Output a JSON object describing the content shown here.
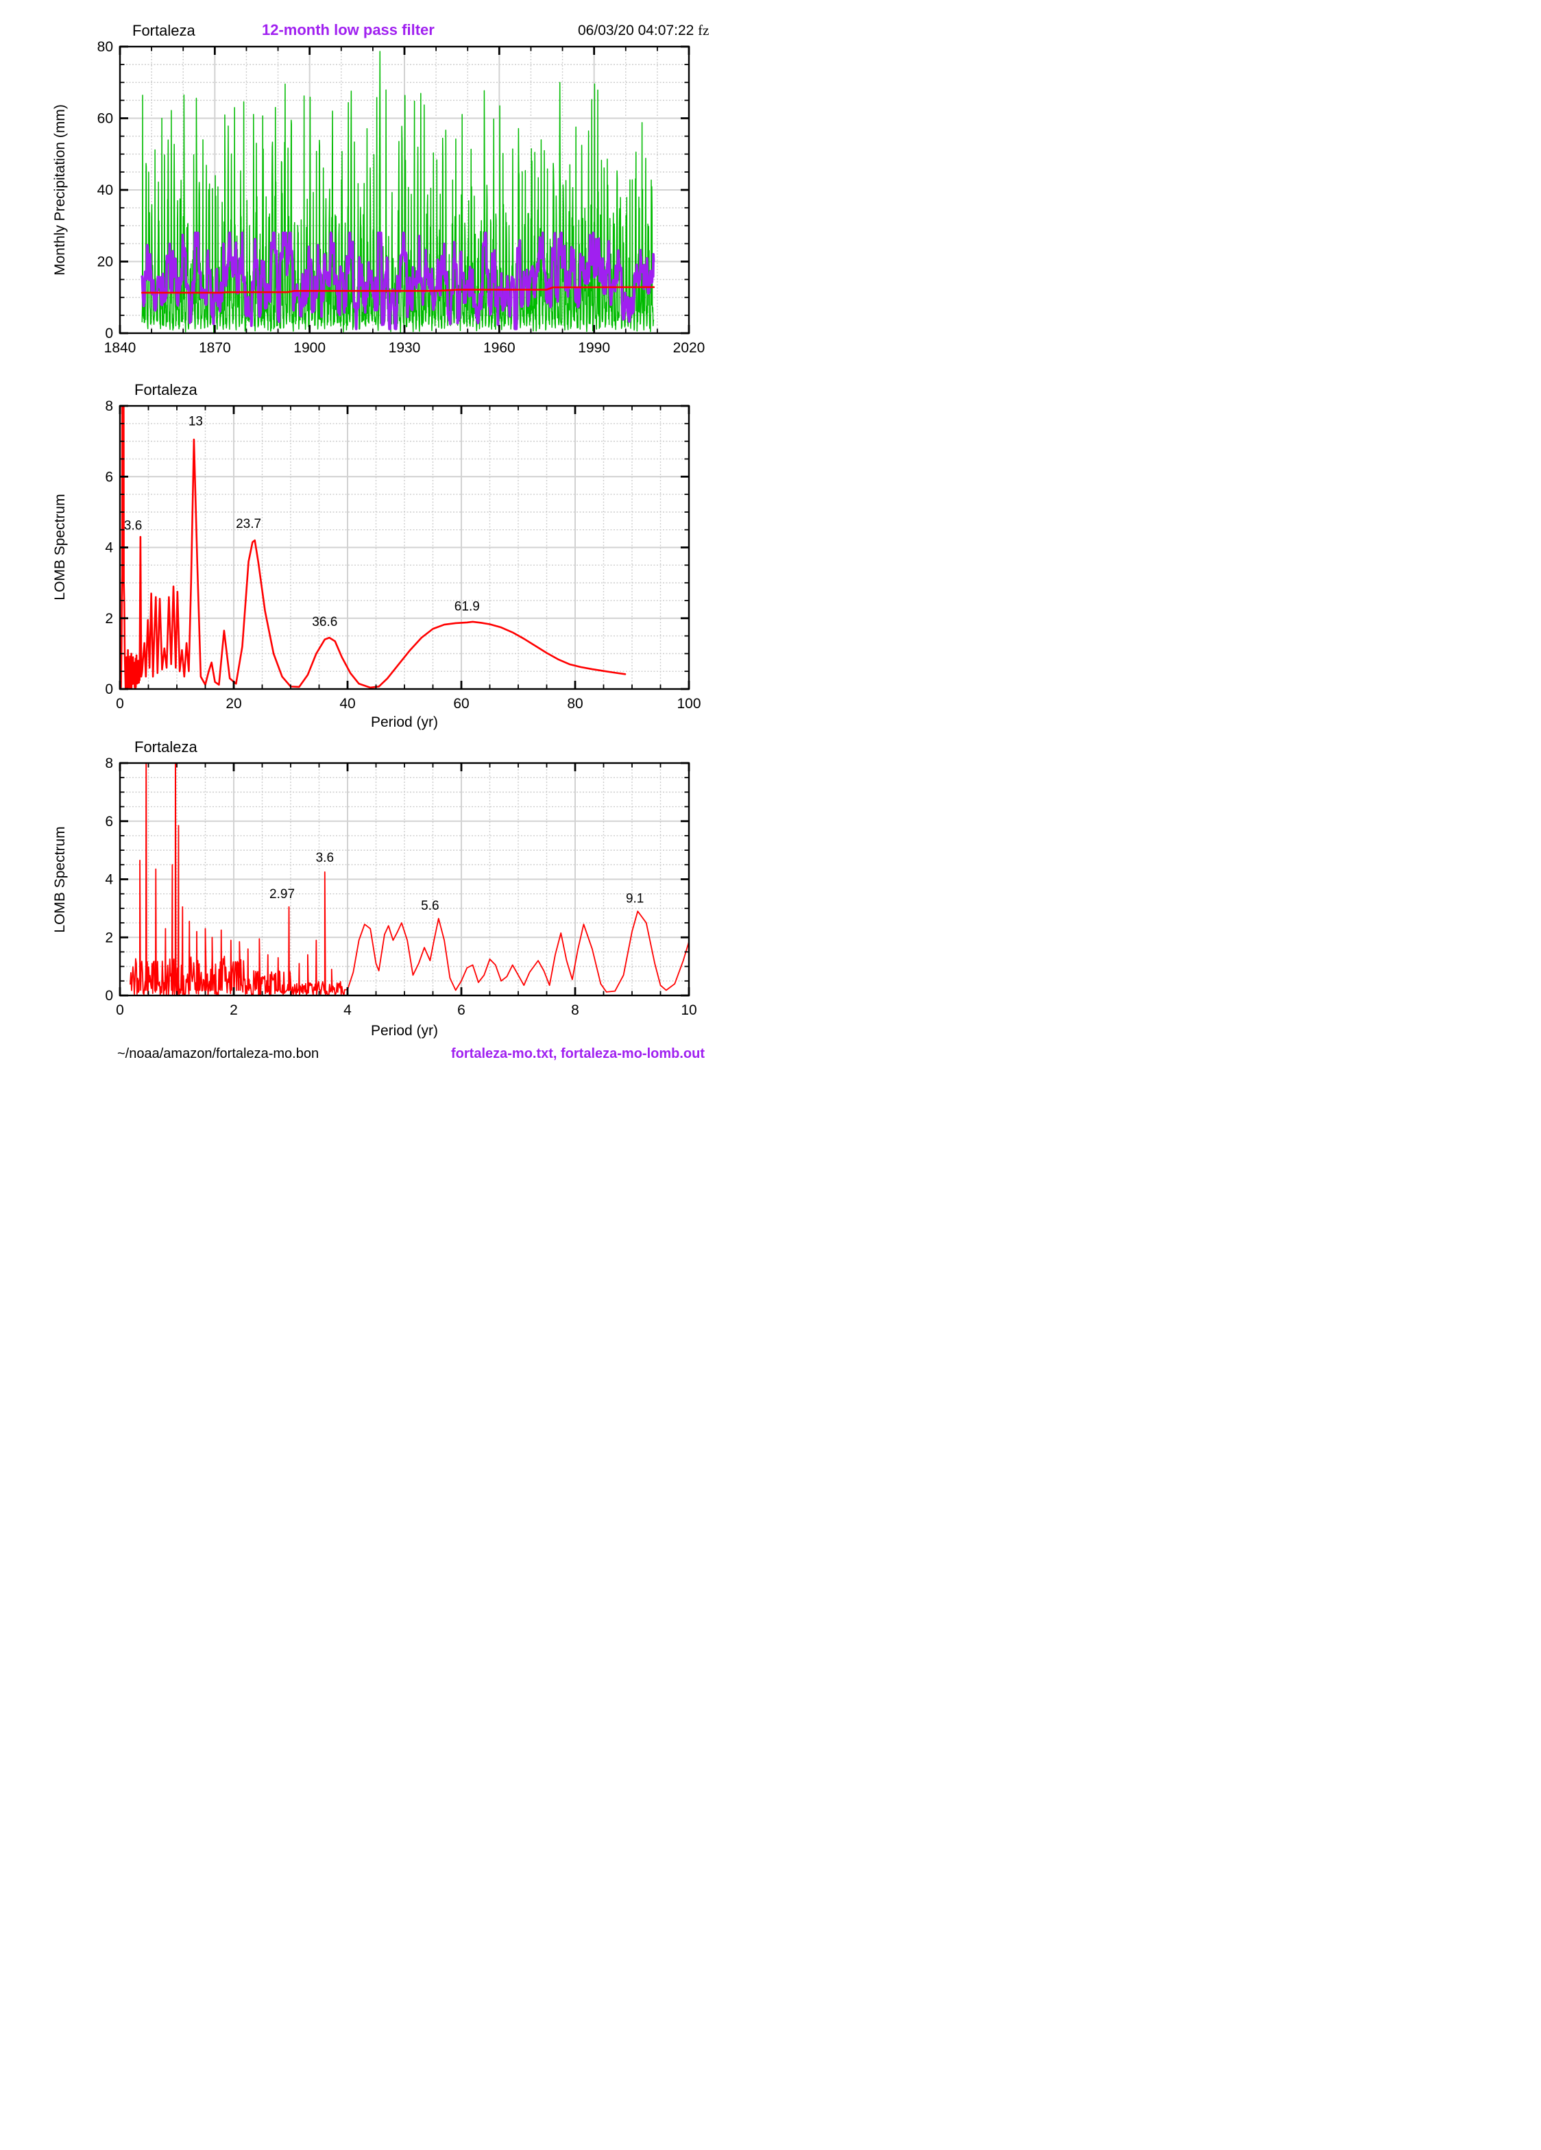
{
  "header": {
    "center_title": "12-month low pass filter",
    "timestamp": "06/03/20  04:07:22",
    "timestamp_suffix": "fz"
  },
  "footer": {
    "source_path": "~/noaa/amazon/fortaleza-mo.bon",
    "output_files": "fortaleza-mo.txt, fortaleza-mo-lomb.out"
  },
  "colors": {
    "series_green": "#00bb00",
    "series_purple": "#a020f0",
    "series_red": "#ff0000",
    "grid_major": "#d2d2d2",
    "grid_minor": "#cccccc",
    "axis": "#000000",
    "background": "#ffffff"
  },
  "chart_data": [
    {
      "id": "precipitation",
      "type": "line",
      "title": "Fortaleza",
      "xlabel": "",
      "ylabel": "Monthly Precipitation (mm)",
      "xlim": [
        1840,
        2020
      ],
      "ylim": [
        0,
        80
      ],
      "xticks": {
        "majors": [
          1840,
          1870,
          1900,
          1930,
          1960,
          1990,
          2020
        ],
        "minor_step": 10
      },
      "yticks": {
        "majors": [
          0,
          20,
          40,
          60,
          80
        ],
        "minor_step": 5
      },
      "grid": true,
      "legend_position": "none",
      "series": [
        {
          "name": "monthly precipitation",
          "color_key": "series_green",
          "type": "monthly_gen",
          "seed": 20061,
          "start": 1847.0,
          "end": 2008.9,
          "points_per_year": 12,
          "value_max": 80
        },
        {
          "name": "12-month low pass filter",
          "color_key": "series_purple",
          "type": "lowpass_of_monthly",
          "window_months": 13,
          "gain": 2.0,
          "mean": 13.5,
          "end_spike": 28
        },
        {
          "name": "linear trend",
          "color_key": "series_red",
          "type": "points",
          "points": [
            [
              1847,
              11.3
            ],
            [
              1872,
              11.3
            ],
            [
              1874,
              11.45
            ],
            [
              1893,
              11.45
            ],
            [
              1895,
              11.8
            ],
            [
              1940,
              11.8
            ],
            [
              1947,
              12.15
            ],
            [
              1975,
              12.15
            ],
            [
              1977,
              12.8
            ],
            [
              2008.9,
              12.85
            ]
          ]
        }
      ],
      "annotations": []
    },
    {
      "id": "lomb-spectrum-100yr",
      "type": "line",
      "title": "Fortaleza",
      "xlabel": "Period (yr)",
      "ylabel": "LOMB Spectrum",
      "xlim": [
        0,
        100
      ],
      "ylim": [
        0,
        8
      ],
      "xticks": {
        "majors": [
          0,
          20,
          40,
          60,
          80,
          100
        ],
        "minor_step": 5
      },
      "yticks": {
        "majors": [
          0,
          2,
          4,
          6,
          8
        ],
        "minor_step": 0.5
      },
      "grid": true,
      "legend_position": "none",
      "series": [
        {
          "name": "LOMB spectrum",
          "color_key": "series_red",
          "type": "spectrum",
          "bar_points": [
            [
              0.18,
              0.05
            ],
            [
              0.28,
              1.2
            ],
            [
              0.34,
              2.6
            ],
            [
              0.4,
              3.2
            ],
            [
              0.42,
              12
            ],
            [
              0.62,
              12
            ],
            [
              0.68,
              3.0
            ],
            [
              0.76,
              2.4
            ],
            [
              0.84,
              1.0
            ],
            [
              0.92,
              0.45
            ]
          ],
          "noise": {
            "x0": 0.95,
            "x1": 3.4,
            "step": 0.04,
            "amp": 0.95,
            "seed": 77
          },
          "noise_spikes": [
            [
              1.15,
              0.9
            ],
            [
              1.4,
              1.1
            ],
            [
              1.7,
              0.85
            ],
            [
              2.0,
              1.0
            ],
            [
              2.3,
              0.9
            ],
            [
              2.6,
              0.75
            ],
            [
              2.9,
              0.95
            ],
            [
              3.2,
              0.8
            ]
          ],
          "points": [
            [
              3.45,
              0.25
            ],
            [
              3.6,
              4.3
            ],
            [
              3.75,
              0.35
            ],
            [
              3.9,
              0.5
            ],
            [
              4.05,
              0.85
            ],
            [
              4.3,
              1.3
            ],
            [
              4.55,
              0.35
            ],
            [
              4.9,
              1.95
            ],
            [
              5.2,
              0.6
            ],
            [
              5.5,
              2.7
            ],
            [
              5.8,
              0.35
            ],
            [
              6.05,
              1.6
            ],
            [
              6.3,
              2.6
            ],
            [
              6.6,
              0.45
            ],
            [
              7.0,
              2.55
            ],
            [
              7.4,
              0.55
            ],
            [
              7.8,
              1.15
            ],
            [
              8.2,
              0.6
            ],
            [
              8.6,
              2.6
            ],
            [
              9.0,
              0.7
            ],
            [
              9.4,
              2.9
            ],
            [
              9.8,
              0.6
            ],
            [
              10.1,
              2.75
            ],
            [
              10.5,
              0.5
            ],
            [
              10.9,
              1.1
            ],
            [
              11.3,
              0.35
            ],
            [
              11.7,
              1.3
            ],
            [
              12.1,
              0.5
            ],
            [
              12.5,
              3.0
            ],
            [
              13.0,
              7.05
            ],
            [
              13.6,
              3.5
            ],
            [
              14.2,
              0.35
            ],
            [
              15.0,
              0.12
            ],
            [
              15.6,
              0.5
            ],
            [
              16.1,
              0.75
            ],
            [
              16.7,
              0.2
            ],
            [
              17.4,
              0.12
            ],
            [
              18.3,
              1.65
            ],
            [
              19.3,
              0.3
            ],
            [
              20.4,
              0.15
            ],
            [
              21.5,
              1.2
            ],
            [
              22.6,
              3.6
            ],
            [
              23.3,
              4.15
            ],
            [
              23.7,
              4.2
            ],
            [
              24.3,
              3.6
            ],
            [
              25.5,
              2.2
            ],
            [
              27.0,
              1.0
            ],
            [
              28.5,
              0.35
            ],
            [
              30.0,
              0.07
            ],
            [
              31.5,
              0.06
            ],
            [
              33.0,
              0.4
            ],
            [
              34.5,
              1.0
            ],
            [
              36.0,
              1.4
            ],
            [
              36.8,
              1.45
            ],
            [
              37.8,
              1.35
            ],
            [
              39.0,
              0.9
            ],
            [
              40.5,
              0.45
            ],
            [
              42.0,
              0.15
            ],
            [
              44.0,
              0.04
            ],
            [
              45.5,
              0.07
            ],
            [
              47.0,
              0.3
            ],
            [
              49.0,
              0.7
            ],
            [
              51.0,
              1.1
            ],
            [
              53.0,
              1.45
            ],
            [
              55.0,
              1.7
            ],
            [
              57.0,
              1.82
            ],
            [
              59.0,
              1.86
            ],
            [
              61.0,
              1.88
            ],
            [
              62.0,
              1.9
            ],
            [
              63.5,
              1.87
            ],
            [
              65.0,
              1.83
            ],
            [
              67.0,
              1.74
            ],
            [
              69.0,
              1.6
            ],
            [
              71.0,
              1.42
            ],
            [
              73.0,
              1.22
            ],
            [
              75.0,
              1.02
            ],
            [
              77.0,
              0.84
            ],
            [
              79.0,
              0.7
            ],
            [
              81.0,
              0.62
            ],
            [
              83.0,
              0.56
            ],
            [
              85.0,
              0.51
            ],
            [
              87.0,
              0.46
            ],
            [
              88.8,
              0.42
            ]
          ]
        }
      ],
      "annotations": [
        {
          "text": "3.6",
          "x": 2.3,
          "y": 4.5
        },
        {
          "text": "13",
          "x": 13.3,
          "y": 7.45
        },
        {
          "text": "23.7",
          "x": 22.6,
          "y": 4.55
        },
        {
          "text": "36.6",
          "x": 36.0,
          "y": 1.78
        },
        {
          "text": "61.9",
          "x": 61.0,
          "y": 2.22
        }
      ]
    },
    {
      "id": "lomb-spectrum-10yr",
      "type": "line",
      "title": "Fortaleza",
      "xlabel": "Period (yr)",
      "ylabel": "LOMB Spectrum",
      "xlim": [
        0,
        10
      ],
      "ylim": [
        0,
        8
      ],
      "xticks": {
        "majors": [
          0,
          2,
          4,
          6,
          8,
          10
        ],
        "minor_step": 0.5
      },
      "yticks": {
        "majors": [
          0,
          2,
          4,
          6,
          8
        ],
        "minor_step": 0.5
      },
      "grid": true,
      "legend_position": "none",
      "series": [
        {
          "name": "LOMB spectrum",
          "color_key": "series_red",
          "type": "spectrum",
          "noise": {
            "x0": 0.18,
            "x1": 3.95,
            "step": 0.012,
            "amp": 1.35,
            "amp_breaks": [
              [
                2.2,
                0.85
              ],
              [
                3.0,
                0.5
              ]
            ],
            "seed": 913
          },
          "noise_spikes": [
            [
              0.35,
              4.65
            ],
            [
              0.46,
              9.5
            ],
            [
              0.63,
              4.35
            ],
            [
              0.8,
              2.3
            ],
            [
              0.92,
              4.5
            ],
            [
              0.975,
              9.5
            ],
            [
              1.03,
              5.85
            ],
            [
              1.1,
              3.05
            ],
            [
              1.22,
              2.55
            ],
            [
              1.35,
              2.2
            ],
            [
              1.5,
              2.3
            ],
            [
              1.62,
              2.0
            ],
            [
              1.78,
              2.25
            ],
            [
              1.95,
              1.9
            ],
            [
              2.1,
              1.85
            ],
            [
              2.25,
              1.6
            ],
            [
              2.45,
              1.95
            ],
            [
              2.6,
              1.4
            ],
            [
              2.78,
              1.3
            ],
            [
              2.97,
              3.05
            ],
            [
              3.15,
              1.1
            ],
            [
              3.3,
              1.4
            ],
            [
              3.45,
              1.9
            ],
            [
              3.6,
              4.25
            ],
            [
              3.72,
              0.9
            ]
          ],
          "points": [
            [
              4.0,
              0.2
            ],
            [
              4.1,
              0.8
            ],
            [
              4.2,
              1.9
            ],
            [
              4.3,
              2.45
            ],
            [
              4.4,
              2.3
            ],
            [
              4.5,
              1.1
            ],
            [
              4.55,
              0.85
            ],
            [
              4.65,
              2.1
            ],
            [
              4.72,
              2.4
            ],
            [
              4.8,
              1.9
            ],
            [
              4.88,
              2.2
            ],
            [
              4.95,
              2.5
            ],
            [
              5.05,
              1.9
            ],
            [
              5.15,
              0.7
            ],
            [
              5.25,
              1.1
            ],
            [
              5.35,
              1.65
            ],
            [
              5.45,
              1.2
            ],
            [
              5.52,
              1.9
            ],
            [
              5.6,
              2.65
            ],
            [
              5.7,
              1.9
            ],
            [
              5.8,
              0.6
            ],
            [
              5.9,
              0.18
            ],
            [
              6.0,
              0.5
            ],
            [
              6.1,
              0.95
            ],
            [
              6.2,
              1.05
            ],
            [
              6.3,
              0.45
            ],
            [
              6.4,
              0.7
            ],
            [
              6.5,
              1.25
            ],
            [
              6.6,
              1.05
            ],
            [
              6.7,
              0.5
            ],
            [
              6.8,
              0.65
            ],
            [
              6.9,
              1.05
            ],
            [
              7.0,
              0.7
            ],
            [
              7.1,
              0.35
            ],
            [
              7.2,
              0.8
            ],
            [
              7.35,
              1.2
            ],
            [
              7.45,
              0.85
            ],
            [
              7.55,
              0.35
            ],
            [
              7.65,
              1.4
            ],
            [
              7.75,
              2.15
            ],
            [
              7.85,
              1.2
            ],
            [
              7.95,
              0.55
            ],
            [
              8.05,
              1.6
            ],
            [
              8.15,
              2.45
            ],
            [
              8.3,
              1.6
            ],
            [
              8.45,
              0.4
            ],
            [
              8.55,
              0.12
            ],
            [
              8.7,
              0.15
            ],
            [
              8.85,
              0.7
            ],
            [
              9.0,
              2.2
            ],
            [
              9.1,
              2.9
            ],
            [
              9.25,
              2.5
            ],
            [
              9.4,
              1.1
            ],
            [
              9.5,
              0.35
            ],
            [
              9.6,
              0.18
            ],
            [
              9.75,
              0.4
            ],
            [
              9.9,
              1.2
            ],
            [
              10.0,
              1.85
            ]
          ]
        }
      ],
      "annotations": [
        {
          "text": "2.97",
          "x": 2.85,
          "y": 3.35
        },
        {
          "text": "3.6",
          "x": 3.6,
          "y": 4.6
        },
        {
          "text": "5.6",
          "x": 5.45,
          "y": 2.95
        },
        {
          "text": "9.1",
          "x": 9.05,
          "y": 3.2
        }
      ]
    }
  ]
}
